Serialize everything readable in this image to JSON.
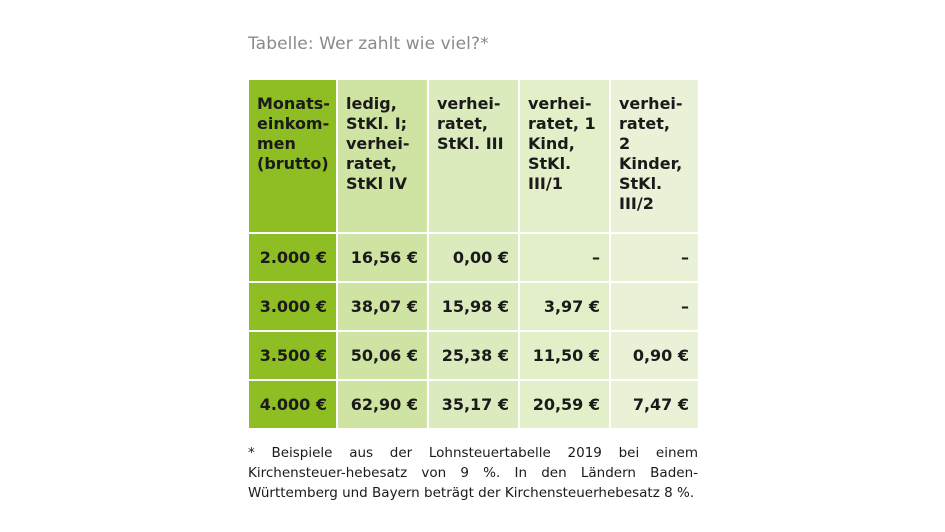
{
  "title": "Tabelle: Wer zahlt wie viel?*",
  "table": {
    "headers": [
      "Monats-\neinkom-\nmen\n(brutto)",
      "ledig,\nStKl. I;\nverhei-\nratet,\nStKl IV",
      "verhei-\nratet,\nStKl. III",
      "verhei-\nratet, 1\nKind,\nStKl.\nIII/1",
      "verhei-\nratet,\n2\nKinder,\nStKl.\nIII/2"
    ],
    "rows": [
      [
        "2.000 €",
        "16,56 €",
        "0,00 €",
        "–",
        "–"
      ],
      [
        "3.000 €",
        "38,07 €",
        "15,98 €",
        "3,97 €",
        "–"
      ],
      [
        "3.500 €",
        "50,06 €",
        "25,38 €",
        "11,50 €",
        "0,90 €"
      ],
      [
        "4.000 €",
        "62,90 €",
        "35,17 €",
        "20,59 €",
        "7,47 €"
      ]
    ]
  },
  "footnote": "* Beispiele aus der Lohnsteuertabelle 2019 bei einem Kirchensteuer-hebesatz von 9 %. In den Ländern Baden-Württemberg und Bayern beträgt der Kirchensteuerhebesatz 8 %.",
  "colors": {
    "col_income": "#8fbd24",
    "col_1": "#cfe3a2",
    "col_2": "#dcebbd",
    "col_3": "#e3efc9",
    "col_4": "#e9f2d6",
    "title": "#8a8a8a"
  }
}
